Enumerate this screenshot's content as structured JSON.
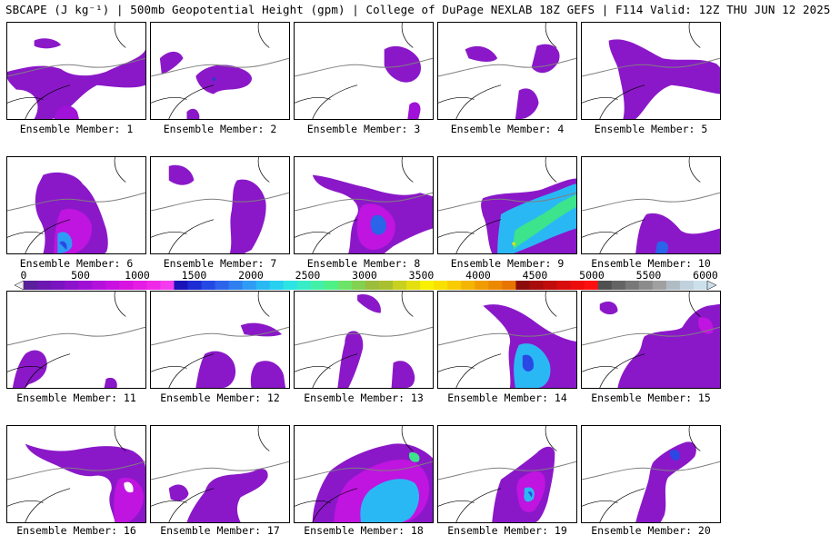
{
  "title": "SBCAPE (J kg⁻¹) | 500mb Geopotential Height (gpm) | College of DuPage NEXLAB 18Z GEFS | F114 Valid: 12Z THU JUN 12 2025",
  "colorbar": {
    "tick_labels": [
      "0",
      "500",
      "1000",
      "1500",
      "2000",
      "2500",
      "3000",
      "3500",
      "4000",
      "4500",
      "5000",
      "5500",
      "6000"
    ],
    "colors": [
      "#f0f0f0",
      "#5a1f9a",
      "#6a18b0",
      "#7a14c0",
      "#8c12cc",
      "#a010d4",
      "#b410dc",
      "#c810e0",
      "#d814e0",
      "#e41ce4",
      "#ef28e8",
      "#f43cee",
      "#1a14b8",
      "#1e2cd4",
      "#2448e4",
      "#2c64ec",
      "#2e80f0",
      "#2e9cf4",
      "#2ab8f4",
      "#28d0f0",
      "#2ce4e4",
      "#38ecc8",
      "#44f0a8",
      "#50f088",
      "#6ce468",
      "#84d050",
      "#9cbc3c",
      "#a8c030",
      "#c8d020",
      "#e4e010",
      "#f8f000",
      "#f8e000",
      "#f8cc00",
      "#f4b400",
      "#f09c00",
      "#ec8800",
      "#e87400",
      "#8c0c0c",
      "#a80c0c",
      "#c00c0c",
      "#d80c0c",
      "#ec0c0c",
      "#ff1010",
      "#505050",
      "#646464",
      "#787878",
      "#8c8c8c",
      "#a0a0a0",
      "#b0bcc4",
      "#c0d0dc",
      "#cce0ec"
    ]
  },
  "members": [
    {
      "label": "Ensemble Member: 1"
    },
    {
      "label": "Ensemble Member: 2"
    },
    {
      "label": "Ensemble Member: 3"
    },
    {
      "label": "Ensemble Member: 4"
    },
    {
      "label": "Ensemble Member: 5"
    },
    {
      "label": "Ensemble Member: 6"
    },
    {
      "label": "Ensemble Member: 7"
    },
    {
      "label": "Ensemble Member: 8"
    },
    {
      "label": "Ensemble Member: 9"
    },
    {
      "label": "Ensemble Member: 10"
    },
    {
      "label": "Ensemble Member: 11"
    },
    {
      "label": "Ensemble Member: 12"
    },
    {
      "label": "Ensemble Member: 13"
    },
    {
      "label": "Ensemble Member: 14"
    },
    {
      "label": "Ensemble Member: 15"
    },
    {
      "label": "Ensemble Member: 16"
    },
    {
      "label": "Ensemble Member: 17"
    },
    {
      "label": "Ensemble Member: 18"
    },
    {
      "label": "Ensemble Member: 19"
    },
    {
      "label": "Ensemble Member: 20"
    }
  ]
}
